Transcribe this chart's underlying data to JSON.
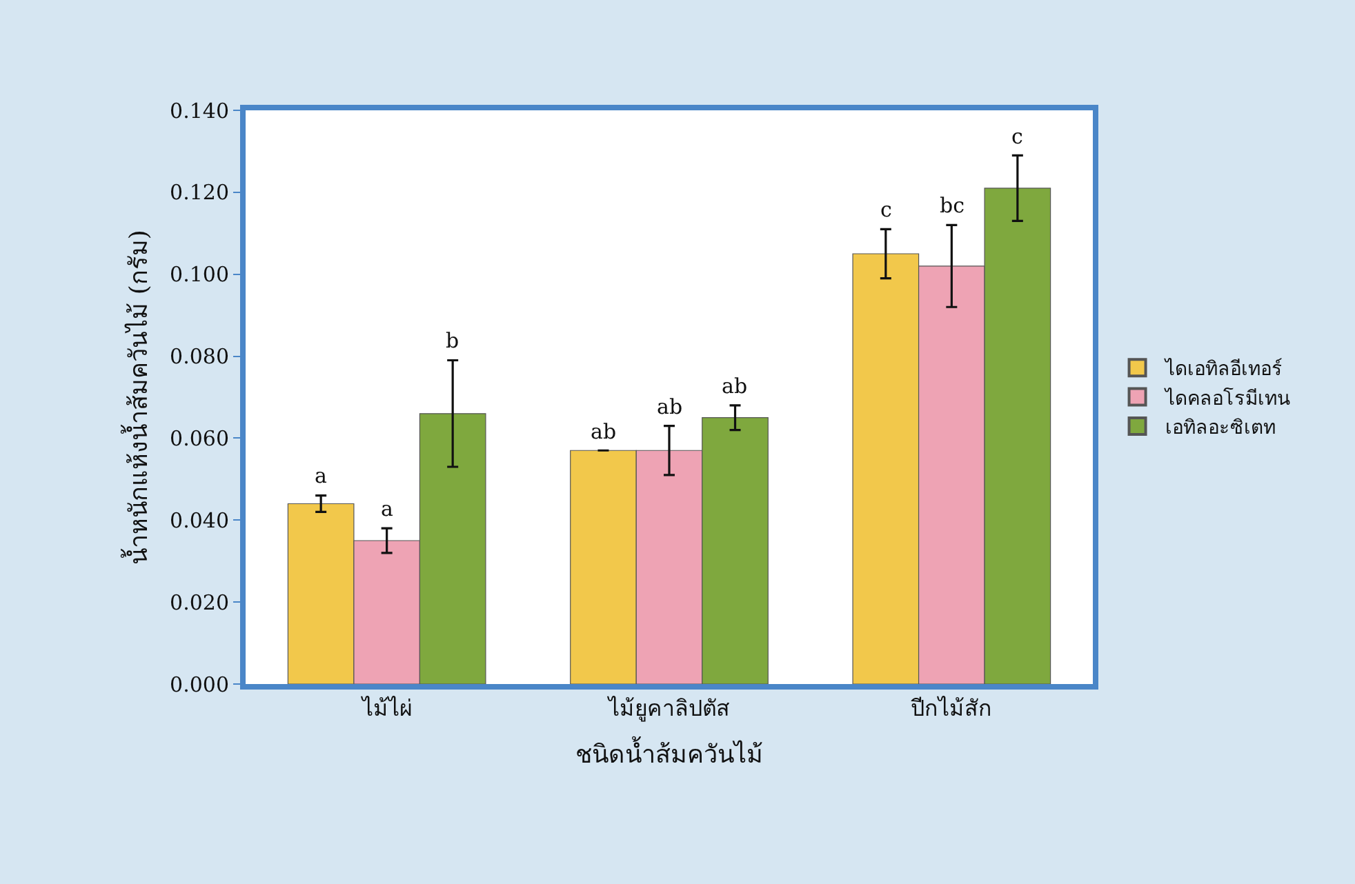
{
  "chart_data": {
    "type": "bar",
    "categories": [
      "ไม้ไผ่",
      "ไม้ยูคาลิปตัส",
      "ปีกไม้สัก"
    ],
    "xlabel": "ชนิดน้ำส้มควันไม้",
    "ylabel": "น้ำหนักแห้งน้ำส้มควันไม้ (กรัม)",
    "series": [
      {
        "name": "ไดเอทิลอีเทอร์",
        "color": "#f2c84b",
        "values": [
          0.044,
          0.057,
          0.105
        ],
        "errors": [
          0.002,
          null,
          0.006
        ],
        "value_labels": [
          "a",
          "ab",
          "c"
        ]
      },
      {
        "name": "ไดคลอโรมีเทน",
        "color": "#eea3b4",
        "values": [
          0.035,
          0.057,
          0.102
        ],
        "errors": [
          0.003,
          0.006,
          0.01
        ],
        "value_labels": [
          "a",
          "ab",
          "bc"
        ]
      },
      {
        "name": "เอทิลอะซิเตท",
        "color": "#7fa83e",
        "values": [
          0.066,
          0.065,
          0.121
        ],
        "errors": [
          0.013,
          0.003,
          0.008
        ],
        "value_labels": [
          "b",
          "ab",
          "c"
        ]
      }
    ],
    "ylim": [
      0,
      0.14
    ],
    "yticks": [
      {
        "value": 0,
        "label": "0.000"
      },
      {
        "value": 0.02,
        "label": "0.020"
      },
      {
        "value": 0.04,
        "label": "0.040"
      },
      {
        "value": 0.06,
        "label": "0.060"
      },
      {
        "value": 0.08,
        "label": "0.080"
      },
      {
        "value": 0.1,
        "label": "0.100"
      },
      {
        "value": 0.12,
        "label": "0.120"
      },
      {
        "value": 0.14,
        "label": "0.140"
      }
    ],
    "legend": "right"
  }
}
